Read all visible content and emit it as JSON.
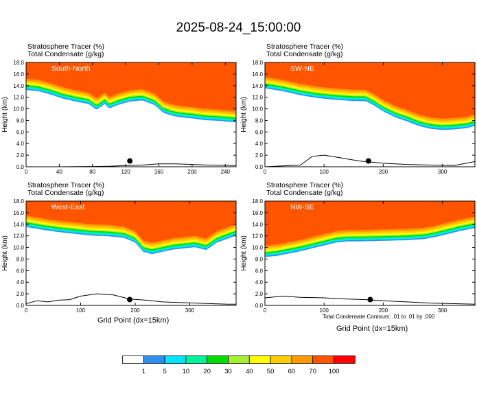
{
  "title": "2025-08-24_15:00:00",
  "subtitle_lines": [
    "Stratosphere Tracer   (%)",
    "Total Condensate   (g/kg)"
  ],
  "ylabel": "Height (km)",
  "xlabel": "Grid Point (dx=15km)",
  "footnote": "Total Condensate Contours: .01 to .01 by .000",
  "colorbar": {
    "labels": [
      "1",
      "5",
      "10",
      "20",
      "30",
      "40",
      "50",
      "60",
      "70",
      "100"
    ],
    "colors": [
      "#ffffff",
      "#2c8ff0",
      "#00e5ff",
      "#00f29a",
      "#00dd00",
      "#a8ee33",
      "#ffff00",
      "#ffcc00",
      "#ff9900",
      "#ff5500",
      "#ff0000"
    ]
  },
  "chart_data": [
    {
      "type": "heatmap",
      "panel_label": "South-North",
      "xlim": [
        0,
        253
      ],
      "ylim": [
        0,
        18
      ],
      "xticks": [
        "0",
        "40",
        "80",
        "120",
        "160",
        "200",
        "240"
      ],
      "yticks": [
        "0.0",
        "2.0",
        "4.0",
        "6.0",
        "8.0",
        "10.0",
        "12.0",
        "14.0",
        "16.0",
        "18.0"
      ],
      "tropopause_km": {
        "x": [
          0,
          15,
          30,
          45,
          60,
          75,
          85,
          95,
          100,
          110,
          125,
          140,
          155,
          165,
          175,
          185,
          200,
          215,
          230,
          253
        ],
        "y": [
          15.2,
          15.0,
          14.4,
          13.7,
          13.2,
          12.8,
          11.8,
          12.8,
          12.0,
          12.6,
          13.2,
          13.4,
          12.6,
          11.3,
          10.8,
          10.5,
          10.3,
          10.0,
          9.9,
          9.6
        ]
      },
      "terrain_km": {
        "x": [
          0,
          40,
          80,
          100,
          120,
          140,
          160,
          180,
          200,
          220,
          240,
          253
        ],
        "y": [
          0.0,
          0.0,
          0.05,
          0.1,
          0.2,
          0.3,
          0.5,
          0.5,
          0.4,
          0.3,
          0.25,
          0.2
        ]
      },
      "marker": {
        "x": 125,
        "y": 1.0
      }
    },
    {
      "type": "heatmap",
      "panel_label": "SW-NE",
      "xlim": [
        0,
        355
      ],
      "ylim": [
        0,
        18
      ],
      "xticks": [
        "0",
        "100",
        "200",
        "300"
      ],
      "yticks": [
        "0.0",
        "2.0",
        "4.0",
        "6.0",
        "8.0",
        "10.0",
        "12.0",
        "14.0",
        "16.0",
        "18.0"
      ],
      "tropopause_km": {
        "x": [
          0,
          30,
          60,
          90,
          120,
          150,
          170,
          185,
          200,
          220,
          240,
          260,
          280,
          300,
          320,
          340,
          355
        ],
        "y": [
          15.5,
          15.0,
          14.3,
          13.8,
          13.5,
          13.3,
          13.3,
          12.5,
          11.5,
          10.5,
          9.8,
          9.0,
          8.5,
          8.3,
          8.4,
          8.6,
          9.0
        ]
      },
      "terrain_km": {
        "x": [
          0,
          60,
          80,
          100,
          130,
          160,
          200,
          240,
          280,
          320,
          340,
          355
        ],
        "y": [
          0.0,
          0.3,
          1.8,
          2.0,
          1.5,
          1.0,
          0.6,
          0.4,
          0.3,
          0.2,
          0.6,
          0.9
        ]
      },
      "marker": {
        "x": 175,
        "y": 1.0
      }
    },
    {
      "type": "heatmap",
      "panel_label": "West-East",
      "xlim": [
        0,
        385
      ],
      "ylim": [
        0,
        18
      ],
      "xticks": [
        "0",
        "100",
        "200",
        "300"
      ],
      "yticks": [
        "0.0",
        "2.0",
        "4.0",
        "6.0",
        "8.0",
        "10.0",
        "12.0",
        "14.0",
        "16.0",
        "18.0"
      ],
      "tropopause_km": {
        "x": [
          0,
          30,
          60,
          90,
          120,
          150,
          180,
          200,
          215,
          230,
          250,
          270,
          290,
          310,
          330,
          350,
          370,
          385
        ],
        "y": [
          15.5,
          15.0,
          14.6,
          14.3,
          14.0,
          13.9,
          13.6,
          12.8,
          11.2,
          10.8,
          11.2,
          11.6,
          11.8,
          12.0,
          11.5,
          12.8,
          13.5,
          14.0
        ]
      },
      "terrain_km": {
        "x": [
          0,
          20,
          40,
          60,
          80,
          100,
          130,
          160,
          190,
          220,
          250,
          280,
          310,
          340,
          370,
          385
        ],
        "y": [
          0.3,
          0.8,
          0.6,
          0.9,
          1.0,
          1.6,
          2.0,
          1.8,
          1.1,
          0.9,
          0.6,
          0.5,
          0.4,
          0.3,
          0.2,
          0.2
        ]
      },
      "marker": {
        "x": 190,
        "y": 1.0
      }
    },
    {
      "type": "heatmap",
      "panel_label": "NW-SE",
      "xlim": [
        0,
        355
      ],
      "ylim": [
        0,
        18
      ],
      "xticks": [
        "0",
        "100",
        "200",
        "300"
      ],
      "yticks": [
        "0.0",
        "2.0",
        "4.0",
        "6.0",
        "8.0",
        "10.0",
        "12.0",
        "14.0",
        "16.0",
        "18.0"
      ],
      "tropopause_km": {
        "x": [
          0,
          20,
          40,
          60,
          80,
          100,
          120,
          140,
          160,
          200,
          240,
          270,
          290,
          310,
          330,
          355
        ],
        "y": [
          10.3,
          10.5,
          10.9,
          11.3,
          11.8,
          12.3,
          12.8,
          13.0,
          13.0,
          13.1,
          13.2,
          13.4,
          13.8,
          14.3,
          14.8,
          15.3
        ]
      },
      "terrain_km": {
        "x": [
          0,
          30,
          60,
          100,
          140,
          170,
          200,
          240,
          280,
          320,
          355
        ],
        "y": [
          1.3,
          1.6,
          1.4,
          1.3,
          1.1,
          1.0,
          0.8,
          0.6,
          0.4,
          0.3,
          0.2
        ]
      },
      "marker": {
        "x": 178,
        "y": 1.0
      }
    }
  ]
}
